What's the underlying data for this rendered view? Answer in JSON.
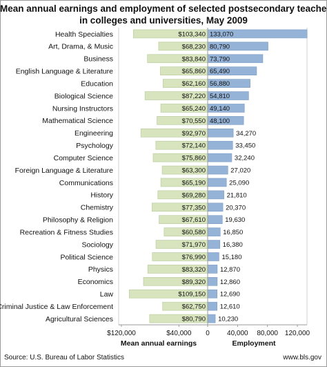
{
  "chart_data": {
    "type": "bar",
    "title_lines": [
      "Mean annual earnings and employment of selected postsecondary teachers",
      "in colleges and universities, May 2009"
    ],
    "categories": [
      "Health Specialties",
      "Art, Drama, & Music",
      "Business",
      "English Language & Literature",
      "Education",
      "Biological Science",
      "Nursing Instructors",
      "Mathematical Science",
      "Engineering",
      "Psychology",
      "Computer Science",
      "Foreign Language & Literature",
      "Communications",
      "History",
      "Chemistry",
      "Philosophy & Religion",
      "Recreation & Fitness Studies",
      "Sociology",
      "Political Science",
      "Physics",
      "Economics",
      "Law",
      "Criminal Justice & Law Enforcement",
      "Agricultural Sciences"
    ],
    "series": [
      {
        "name": "Mean annual earnings",
        "color": "#d7e4bd",
        "values": [
          103340,
          68230,
          83840,
          65860,
          62160,
          87220,
          65240,
          70550,
          92970,
          72140,
          75860,
          63300,
          65190,
          69280,
          77350,
          67610,
          60580,
          71970,
          76990,
          83320,
          89320,
          109150,
          62750,
          80790
        ],
        "labels": [
          "$103,340",
          "$68,230",
          "$83,840",
          "$65,860",
          "$62,160",
          "$87,220",
          "$65,240",
          "$70,550",
          "$92,970",
          "$72,140",
          "$75,860",
          "$63,300",
          "$65,190",
          "$69,280",
          "$77,350",
          "$67,610",
          "$60,580",
          "$71,970",
          "$76,990",
          "$83,320",
          "$89,320",
          "$109,150",
          "$62,750",
          "$80,790"
        ]
      },
      {
        "name": "Employment",
        "color": "#95b3d7",
        "values": [
          133070,
          80790,
          73790,
          65490,
          56880,
          54810,
          49140,
          48100,
          34270,
          33450,
          32240,
          27020,
          25090,
          21810,
          20370,
          19630,
          16850,
          16380,
          15180,
          12870,
          12860,
          12690,
          12610,
          10230
        ],
        "labels": [
          "133,070",
          "80,790",
          "73,790",
          "65,490",
          "56,880",
          "54,810",
          "49,140",
          "48,100",
          "34,270",
          "33,450",
          "32,240",
          "27,020",
          "25,090",
          "21,810",
          "20,370",
          "19,630",
          "16,850",
          "16,380",
          "15,180",
          "12,870",
          "12,860",
          "12,690",
          "12,610",
          "10,230"
        ]
      }
    ],
    "left_axis": {
      "title": "Mean annual earnings",
      "range": [
        0,
        120000
      ],
      "ticks": [
        "$120,000",
        "$40,000"
      ]
    },
    "right_axis": {
      "title": "Employment",
      "range": [
        0,
        120000
      ],
      "ticks": [
        "0",
        "40,000",
        "80,000",
        "120,000"
      ]
    },
    "grid": false,
    "source": "Source: U.S. Bureau of Labor Statistics",
    "website": "www.bls.gov"
  }
}
